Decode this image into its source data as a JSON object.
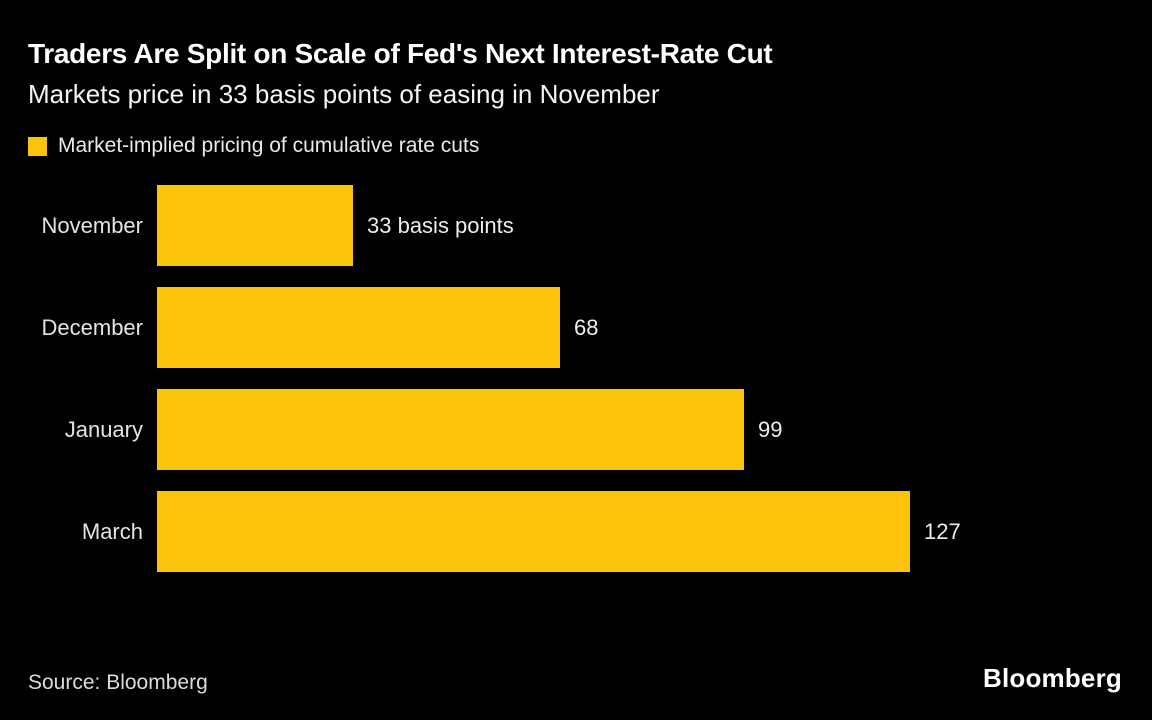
{
  "chart_data": {
    "type": "bar",
    "orientation": "horizontal",
    "title": "Traders Are Split on Scale of Fed's Next Interest-Rate Cut",
    "subtitle": "Markets price in 33 basis points of easing in November",
    "legend": [
      {
        "label": "Market-implied pricing of cumulative rate cuts",
        "color": "#FCC30B"
      }
    ],
    "categories": [
      "November",
      "December",
      "January",
      "March"
    ],
    "values": [
      33,
      68,
      99,
      127
    ],
    "value_labels": [
      "33 basis points",
      "68",
      "99",
      "127"
    ],
    "unit": "basis points",
    "xlim": [
      0,
      127
    ],
    "grid": false,
    "legend_position": "top-left",
    "bar_color": "#FCC30B",
    "background_color": "#000000"
  },
  "footer": {
    "source": "Source: Bloomberg",
    "brand": "Bloomberg"
  }
}
